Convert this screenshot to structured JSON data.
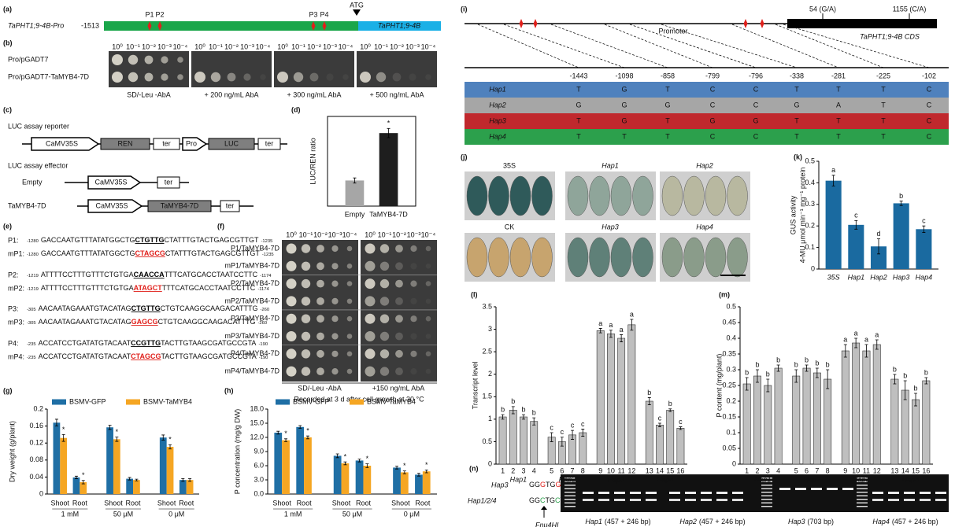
{
  "panels": {
    "a": {
      "label": "(a)",
      "name": "TaPHT1;9-4B-Pro",
      "start": "-1513",
      "sites": [
        "P1",
        "P2",
        "P3",
        "P4"
      ],
      "atg": "ATG",
      "gene": "TaPHT1;9-4B"
    },
    "b": {
      "label": "(b)",
      "dilutions": [
        "10⁰",
        "10⁻¹",
        "10⁻²",
        "10⁻³",
        "10⁻⁴"
      ],
      "rows": [
        "Pro/pGADT7",
        "Pro/pGADT7-TaMYB4-7D"
      ],
      "conditions": [
        "SD/-Leu -AbA",
        "+ 200 ng/mL AbA",
        "+ 300 ng/mL AbA",
        "+ 500 ng/mL AbA"
      ]
    },
    "c": {
      "label": "(c)",
      "reporter_title": "LUC assay reporter",
      "reporter": [
        "CaMV35S",
        "REN",
        "ter",
        "Pro",
        "LUC",
        "ter"
      ],
      "effector_title": "LUC assay effector",
      "empty": "Empty",
      "empty_parts": [
        "CaMV35S",
        "ter"
      ],
      "tamyb": "TaMYB4-7D",
      "tamyb_parts": [
        "CaMV35S",
        "TaMYB4-7D",
        "ter"
      ]
    },
    "e": {
      "label": "(e)",
      "rows": [
        {
          "name": "P1:",
          "start": "-1280",
          "pre": "GACCAATGTTTATATGGCTG",
          "site": "CTGTTG",
          "post": "CTATTTGTACTGAGCGTTGT",
          "end": "-1235",
          "color": "#000000"
        },
        {
          "name": "mP1:",
          "start": "-1280",
          "pre": "GACCAATGTTTATATGGCTG",
          "site": "CTAGCG",
          "post": "CTATTTGTACTGAGCGTTGT",
          "end": "-1235",
          "color": "#e0201b"
        },
        {
          "name": "P2:",
          "start": "-1219",
          "pre": "ATTTTCCTTTGTTTCTGTGA",
          "site": "CAACCA",
          "post": "TTTCATGCACCTAATCCTTC",
          "end": "-1174",
          "color": "#000000"
        },
        {
          "name": "mP2:",
          "start": "-1219",
          "pre": "ATTTTCCTTTGTTTCTGTGA",
          "site": "ATAGCT",
          "post": "TTTCATGCACCTAATCCTTC",
          "end": "-1174",
          "color": "#e0201b"
        },
        {
          "name": "P3:",
          "start": "-305",
          "pre": "AACAATAGAAATGTACATAG",
          "site": "CTGTTG",
          "post": "CTGTCAAGGCAAGACATTTG",
          "end": "-260",
          "color": "#000000"
        },
        {
          "name": "mP3:",
          "start": "-305",
          "pre": "AACAATAGAAATGTACATAG",
          "site": "GAGCG",
          "post": "CTGTCAAGGCAAGACATTTG",
          "end": "-260",
          "color": "#e0201b"
        },
        {
          "name": "P4:",
          "start": "-235",
          "pre": "ACCATCCTGATATGTACAAT",
          "site": "CCGTTG",
          "post": "TACTTGTAAGCGATGCCGTA",
          "end": "-190",
          "color": "#000000"
        },
        {
          "name": "mP4:",
          "start": "-235",
          "pre": "ACCATCCTGATATGTACAAT",
          "site": "CTAGCG",
          "post": "TACTTGTAAGCGATGCCGTA",
          "end": "-190",
          "color": "#e0201b"
        }
      ]
    },
    "f": {
      "label": "(f)",
      "dilutions": [
        "10⁰",
        "10⁻¹",
        "10⁻²",
        "10⁻³",
        "10⁻⁴"
      ],
      "rows": [
        "P1/TaMYB4-7D",
        "mP1/TaMYB4-7D",
        "P2/TaMYB4-7D",
        "mP2/TaMYB4-7D",
        "P3/TaMYB4-7D",
        "mP3/TaMYB4-7D",
        "P4/TaMYB4-7D",
        "mP4/TaMYB4-7D"
      ],
      "conditions": [
        "SD/-Leu -AbA",
        "+150 ng/mL AbA"
      ],
      "note": "Recorded at 3 d after cell growth at 30 °C"
    },
    "i": {
      "label": "(i)",
      "snp1": "54 (G/A)",
      "snp2": "1155 (C/A)",
      "promoter": "Promoter",
      "cds": "TaPHT1;9-4B CDS",
      "positions": [
        "-1443",
        "-1098",
        "-858",
        "-799",
        "-796",
        "-338",
        "-281",
        "-225",
        "-102"
      ],
      "haplotypes": [
        {
          "name": "Hap1",
          "color": "#4f81bd",
          "alleles": [
            "T",
            "G",
            "T",
            "C",
            "C",
            "T",
            "T",
            "T",
            "C"
          ]
        },
        {
          "name": "Hap2",
          "color": "#a6a6a6",
          "alleles": [
            "G",
            "G",
            "G",
            "C",
            "C",
            "G",
            "A",
            "T",
            "C"
          ]
        },
        {
          "name": "Hap3",
          "color": "#c0282d",
          "alleles": [
            "T",
            "G",
            "T",
            "G",
            "G",
            "T",
            "T",
            "T",
            "C"
          ]
        },
        {
          "name": "Hap4",
          "color": "#2ca04c",
          "alleles": [
            "T",
            "T",
            "T",
            "C",
            "C",
            "T",
            "T",
            "T",
            "C"
          ]
        }
      ]
    },
    "j": {
      "label": "(j)",
      "groups": [
        "35S",
        "Hap1",
        "Hap2",
        "CK",
        "Hap3",
        "Hap4"
      ]
    },
    "n": {
      "label": "(n)",
      "hap3": "Hap3",
      "seq3": [
        "GG",
        "G",
        "TG",
        "G",
        "T"
      ],
      "hap124": "Hap1/2/4",
      "seq124": [
        "GG",
        "C",
        "TG",
        "C",
        "T"
      ],
      "enzyme": "Fnu4HI",
      "lanes": [
        {
          "name": "Hap1",
          "size": "(457 + 246 bp)"
        },
        {
          "name": "Hap2",
          "size": "(457 + 246 bp)"
        },
        {
          "name": "Hap3",
          "size": "(703 bp)"
        },
        {
          "name": "Hap4",
          "size": "(457 + 246 bp)"
        }
      ]
    }
  },
  "chart_data": [
    {
      "label": "(d)",
      "type": "bar",
      "ylabel": "LUC/REN ratio",
      "categories": [
        "Empty",
        "TaMYB4-7D"
      ],
      "values": [
        1.0,
        2.85
      ],
      "errors": [
        0.1,
        0.18
      ],
      "colors": [
        "#a6a6a6",
        "#1e1e1e"
      ],
      "annotations": [
        null,
        "*"
      ],
      "ylim": [
        0,
        3.5
      ]
    },
    {
      "label": "(g)",
      "type": "bar",
      "ylabel": "Dry weight (g/plant)",
      "categories": [
        "Shoot",
        "Root",
        "Shoot",
        "Root",
        "Shoot",
        "Root"
      ],
      "groups": [
        "1 mM",
        "50 μM",
        "0 μM"
      ],
      "series": [
        {
          "name": "BSMV-GFP",
          "color": "#1f6fa5",
          "values": [
            0.168,
            0.039,
            0.157,
            0.036,
            0.133,
            0.033
          ],
          "errors": [
            0.008,
            0.003,
            0.005,
            0.003,
            0.006,
            0.003
          ]
        },
        {
          "name": "BSMV-TaMYB4",
          "color": "#f5a623",
          "values": [
            0.132,
            0.028,
            0.129,
            0.033,
            0.111,
            0.033
          ],
          "errors": [
            0.008,
            0.004,
            0.005,
            0.002,
            0.005,
            0.003
          ],
          "annotations": [
            "*",
            "*",
            "*",
            null,
            "*",
            null
          ]
        }
      ],
      "ylim": [
        0,
        0.2
      ],
      "yticks": [
        0,
        0.04,
        0.08,
        0.12,
        0.16,
        0.2
      ],
      "legend": "top"
    },
    {
      "label": "(h)",
      "type": "bar",
      "ylabel": "P concentration (mg/g DW)",
      "categories": [
        "Shoot",
        "Root",
        "Shoot",
        "Root",
        "Shoot",
        "Root"
      ],
      "groups": [
        "1 mM",
        "50 μM",
        "0 μM"
      ],
      "series": [
        {
          "name": "BSMV-GFP",
          "color": "#1f6fa5",
          "values": [
            13.0,
            14.2,
            8.1,
            7.1,
            5.6,
            4.1
          ],
          "errors": [
            0.3,
            0.3,
            0.4,
            0.3,
            0.3,
            0.3
          ]
        },
        {
          "name": "BSMV-TaMYB4",
          "color": "#f5a623",
          "values": [
            11.4,
            12.0,
            6.5,
            6.0,
            4.6,
            4.8
          ],
          "errors": [
            0.3,
            0.3,
            0.3,
            0.4,
            0.3,
            0.3
          ],
          "annotations": [
            "*",
            "*",
            "*",
            "*",
            "*",
            "*"
          ]
        }
      ],
      "ylim": [
        0,
        18
      ],
      "yticks": [
        {
          "value": 0,
          "label": "0.0"
        },
        {
          "value": 3,
          "label": "3.0"
        },
        {
          "value": 6,
          "label": "6.0"
        },
        {
          "value": 9,
          "label": "9.0"
        },
        {
          "value": 12,
          "label": "12.0"
        },
        {
          "value": 15,
          "label": "15.0"
        },
        {
          "value": 18,
          "label": "18.0"
        }
      ],
      "legend": "top"
    },
    {
      "label": "(k)",
      "type": "bar",
      "ylabel": "GUS activity",
      "ylabel2": "4-MU μmol min⁻¹ mg⁻¹ protein",
      "categories": [
        "35S",
        "Hap1",
        "Hap2",
        "Hap3",
        "Hap4"
      ],
      "values": [
        0.41,
        0.205,
        0.105,
        0.305,
        0.185
      ],
      "errors": [
        0.025,
        0.02,
        0.035,
        0.01,
        0.015
      ],
      "annotations": [
        "a",
        "c",
        "d",
        "b",
        "c"
      ],
      "color": "#1a6aa0",
      "ylim": [
        0,
        0.5
      ],
      "yticks": [
        0,
        0.1,
        0.2,
        0.3,
        0.4,
        0.5
      ]
    },
    {
      "label": "(l)",
      "type": "bar",
      "ylabel": "Transcript level",
      "categories": [
        "1",
        "2",
        "3",
        "4",
        "5",
        "6",
        "7",
        "8",
        "9",
        "10",
        "11",
        "12",
        "13",
        "14",
        "15",
        "16"
      ],
      "groups": [
        "Hap1",
        "Hap2",
        "Hap3",
        "Hap4"
      ],
      "values": [
        1.05,
        1.2,
        1.05,
        0.95,
        0.6,
        0.5,
        0.65,
        0.7,
        2.97,
        2.9,
        2.8,
        3.1,
        1.4,
        0.87,
        1.2,
        0.8
      ],
      "errors": [
        0.05,
        0.08,
        0.05,
        0.08,
        0.1,
        0.1,
        0.1,
        0.08,
        0.05,
        0.08,
        0.08,
        0.12,
        0.08,
        0.04,
        0.03,
        0.03
      ],
      "annotations": [
        "b",
        "b",
        "b",
        "b",
        "c",
        "c",
        "c",
        "c",
        "a",
        "a",
        "a",
        "a",
        "b",
        "c",
        "b",
        "c"
      ],
      "color": "#bfbfbf",
      "edgecolor": "#333333",
      "ylim": [
        0,
        3.5
      ],
      "yticks": [
        0,
        0.5,
        1,
        1.5,
        2,
        2.5,
        3,
        3.5
      ]
    },
    {
      "label": "(m)",
      "type": "bar",
      "ylabel": "P content (mg/plant)",
      "categories": [
        "1",
        "2",
        "3",
        "4",
        "5",
        "6",
        "7",
        "8",
        "9",
        "10",
        "11",
        "12",
        "13",
        "14",
        "15",
        "16"
      ],
      "groups": [
        "Hap1",
        "Hap2",
        "Hap3",
        "Hap4"
      ],
      "values": [
        0.255,
        0.28,
        0.25,
        0.305,
        0.28,
        0.305,
        0.29,
        0.27,
        0.36,
        0.385,
        0.36,
        0.38,
        0.27,
        0.235,
        0.205,
        0.265
      ],
      "errors": [
        0.02,
        0.02,
        0.02,
        0.01,
        0.02,
        0.01,
        0.015,
        0.03,
        0.02,
        0.015,
        0.02,
        0.015,
        0.015,
        0.03,
        0.02,
        0.01
      ],
      "annotations": [
        "b",
        "b",
        "b",
        "b",
        "b",
        "b",
        "b",
        "b",
        "a",
        "a",
        "a",
        "a",
        "b",
        "b",
        "b",
        "b"
      ],
      "color": "#bfbfbf",
      "edgecolor": "#333333",
      "ylim": [
        0,
        0.5
      ],
      "yticks": [
        0,
        0.05,
        0.1,
        0.15,
        0.2,
        0.25,
        0.3,
        0.35,
        0.4,
        0.45,
        0.5
      ]
    }
  ]
}
